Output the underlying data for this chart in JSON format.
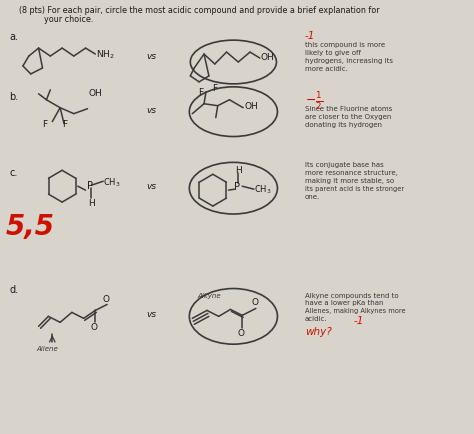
{
  "bg_color": "#d8d4cc",
  "title_line1": "(8 pts) For each pair, circle the most acidic compound and provide a brief explanation for",
  "title_line2": "your choice.",
  "label_a": "a.",
  "label_b": "b.",
  "label_c": "c.",
  "label_d": "d.",
  "vs_text": "vs",
  "score_c": "5,5",
  "text_color": "#1a1a1a",
  "red_color": "#cc1100",
  "pencil_color": "#3a3a3a",
  "hand_color": "#3a3535",
  "figw": 4.74,
  "figh": 4.34,
  "dpi": 100,
  "xlim": 474,
  "ylim": 434
}
